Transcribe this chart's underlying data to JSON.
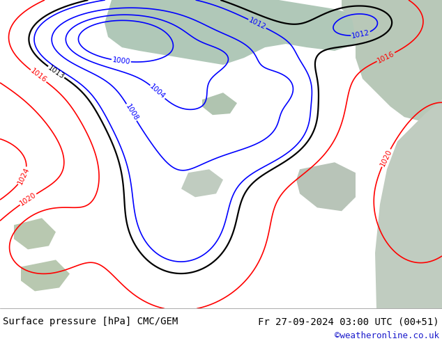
{
  "title_left": "Surface pressure [hPa] CMC/GEM",
  "title_right": "Fr 27-09-2024 03:00 UTC (00+51)",
  "credit": "©weatheronline.co.uk",
  "land_color": "#c8e8a0",
  "ocean_color": "#b8c8b0",
  "gray_color": "#c0c8c0",
  "white_bottom": "#ffffff",
  "black_levels": [
    1013
  ],
  "red_levels": [
    1016,
    1020,
    1024
  ],
  "blue_levels": [
    1000,
    1004,
    1008,
    1012
  ],
  "label_fontsize": 7.5,
  "title_fontsize": 10,
  "credit_fontsize": 9
}
